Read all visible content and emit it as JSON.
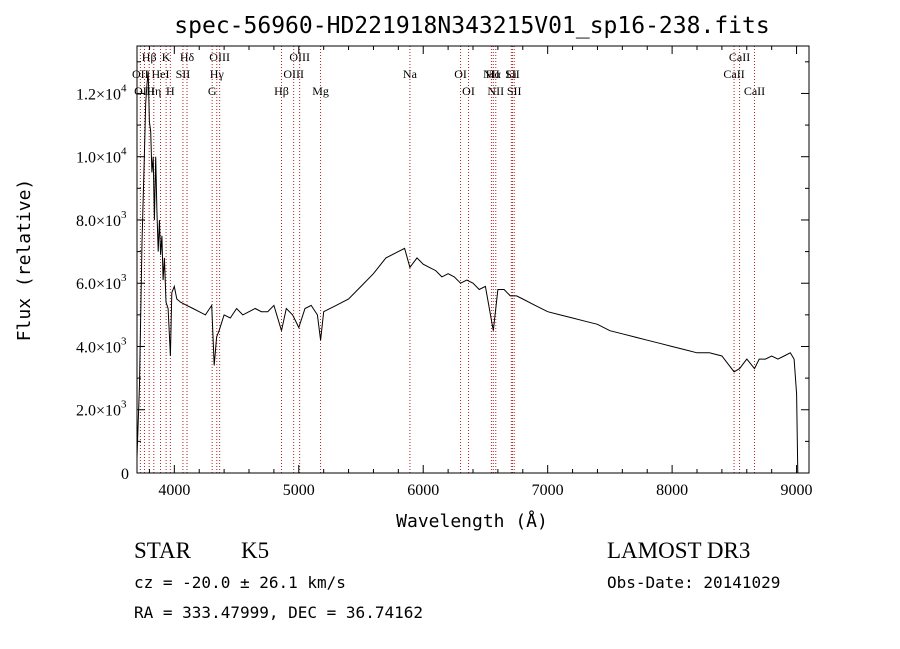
{
  "chart_data": {
    "type": "line",
    "title": "spec-56960-HD221918N343215V01_sp16-238.fits",
    "xlabel": "Wavelength (Å)",
    "ylabel": "Flux (relative)",
    "xlim": [
      3700,
      9100
    ],
    "ylim": [
      0,
      13500
    ],
    "grid": false,
    "x_ticks": [
      4000,
      5000,
      6000,
      7000,
      8000,
      9000
    ],
    "x_tick_labels": [
      "4000",
      "5000",
      "6000",
      "7000",
      "8000",
      "9000"
    ],
    "y_ticks": [
      0,
      2000,
      4000,
      6000,
      8000,
      10000,
      12000
    ],
    "y_tick_labels": [
      {
        "mantissa": "0",
        "exponent": ""
      },
      {
        "mantissa": "2.0×10",
        "exponent": "3"
      },
      {
        "mantissa": "4.0×10",
        "exponent": "3"
      },
      {
        "mantissa": "6.0×10",
        "exponent": "3"
      },
      {
        "mantissa": "8.0×10",
        "exponent": "3"
      },
      {
        "mantissa": "1.0×10",
        "exponent": "4"
      },
      {
        "mantissa": "1.2×10",
        "exponent": "4"
      }
    ],
    "series": [
      {
        "color": "#000000",
        "x": [
          3700,
          3720,
          3740,
          3760,
          3770,
          3780,
          3790,
          3800,
          3810,
          3820,
          3830,
          3840,
          3850,
          3860,
          3870,
          3880,
          3890,
          3900,
          3910,
          3920,
          3933,
          3950,
          3968,
          3980,
          4000,
          4020,
          4050,
          4100,
          4150,
          4200,
          4250,
          4300,
          4320,
          4340,
          4360,
          4400,
          4450,
          4500,
          4550,
          4600,
          4650,
          4700,
          4750,
          4800,
          4861,
          4900,
          4950,
          5000,
          5050,
          5100,
          5150,
          5175,
          5200,
          5300,
          5400,
          5500,
          5600,
          5700,
          5800,
          5850,
          5893,
          5950,
          6000,
          6050,
          6100,
          6150,
          6200,
          6250,
          6300,
          6350,
          6400,
          6450,
          6500,
          6563,
          6600,
          6650,
          6700,
          6750,
          6800,
          6900,
          7000,
          7100,
          7200,
          7300,
          7400,
          7500,
          7600,
          7700,
          7800,
          7900,
          8000,
          8100,
          8200,
          8300,
          8400,
          8498,
          8542,
          8600,
          8662,
          8700,
          8750,
          8800,
          8850,
          8900,
          8950,
          8980,
          9000,
          9010
        ],
        "y": [
          500,
          2800,
          7300,
          10200,
          11700,
          12300,
          12700,
          11100,
          10800,
          9500,
          10000,
          8000,
          10000,
          8300,
          7000,
          8000,
          6900,
          7500,
          6100,
          6800,
          5400,
          5200,
          3700,
          5700,
          5900,
          5500,
          5400,
          5300,
          5200,
          5100,
          5000,
          5300,
          3400,
          4300,
          4500,
          5000,
          4900,
          5200,
          5000,
          5100,
          5200,
          5100,
          5100,
          5300,
          4500,
          5200,
          5000,
          4600,
          5200,
          5300,
          5000,
          4200,
          5100,
          5300,
          5500,
          5900,
          6300,
          6800,
          7000,
          7100,
          6500,
          6800,
          6600,
          6500,
          6400,
          6200,
          6300,
          6200,
          6000,
          6100,
          6000,
          5800,
          5900,
          4500,
          5800,
          5800,
          5600,
          5600,
          5500,
          5300,
          5100,
          5000,
          4900,
          4800,
          4700,
          4500,
          4400,
          4300,
          4200,
          4100,
          4000,
          3900,
          3800,
          3800,
          3700,
          3200,
          3300,
          3600,
          3300,
          3600,
          3600,
          3700,
          3600,
          3700,
          3800,
          3600,
          2500,
          0
        ]
      }
    ],
    "line_ids": [
      {
        "label": "Hβ",
        "x": 3798
      },
      {
        "label": "K",
        "x": 3934
      },
      {
        "label": "Hδ",
        "x": 4102
      },
      {
        "label": "OIII",
        "x": 4364
      },
      {
        "label": "OIII",
        "x": 5007
      },
      {
        "label": "CaII",
        "x": 8542
      },
      {
        "label": "OII",
        "x": 3727
      },
      {
        "label": "HeI",
        "x": 3889
      },
      {
        "label": "SII",
        "x": 4069
      },
      {
        "label": "Hγ",
        "x": 4341
      },
      {
        "label": "OIII",
        "x": 4959
      },
      {
        "label": "Na",
        "x": 5893
      },
      {
        "label": "OI",
        "x": 6300
      },
      {
        "label": "Hα",
        "x": 6563
      },
      {
        "label": "SII",
        "x": 6717
      },
      {
        "label": "NII",
        "x": 6548
      },
      {
        "label": "Li",
        "x": 6708
      },
      {
        "label": "CaII",
        "x": 8498
      },
      {
        "label": "OIII",
        "x": 3760
      },
      {
        "label": "Hη",
        "x": 3835
      },
      {
        "label": "H",
        "x": 3968
      },
      {
        "label": "G",
        "x": 4304
      },
      {
        "label": "Hβ",
        "x": 4861
      },
      {
        "label": "Mg",
        "x": 5175
      },
      {
        "label": "OI",
        "x": 6364
      },
      {
        "label": "NII",
        "x": 6583
      },
      {
        "label": "SII",
        "x": 6731
      },
      {
        "label": "CaII",
        "x": 8662
      }
    ]
  },
  "info": {
    "object_class": "STAR",
    "subclass": "K5",
    "survey": "LAMOST DR3",
    "redshift": "cz = -20.0 ± 26.1 km/s",
    "obs_date": "Obs-Date: 20141029",
    "coords": "RA = 333.47999, DEC =  36.74162"
  }
}
